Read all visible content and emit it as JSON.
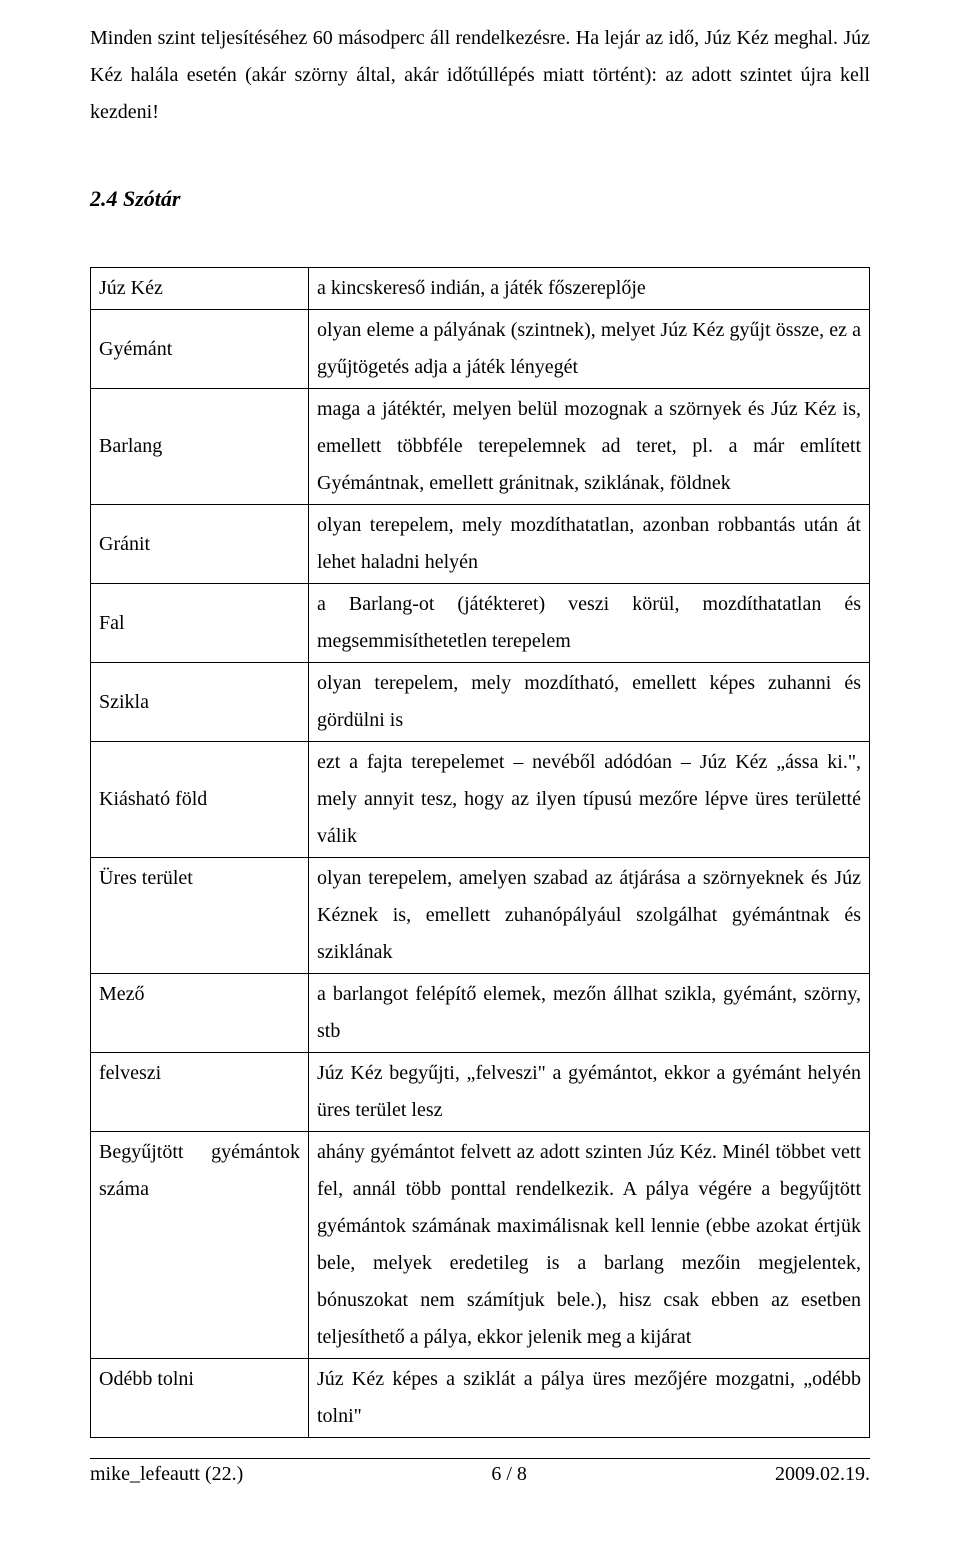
{
  "intro": "Minden szint teljesítéséhez 60 másodperc áll rendelkezésre. Ha lejár az idő, Júz Kéz meghal. Júz Kéz halála esetén (akár szörny által, akár időtúllépés miatt történt): az adott szintet újra kell kezdeni!",
  "heading": "2.4 Szótár",
  "glossary": [
    {
      "term": "Júz Kéz",
      "def": "a kincskereső indián, a játék főszereplője"
    },
    {
      "term": "Gyémánt",
      "def": "olyan eleme a pályának (szintnek), melyet Júz Kéz gyűjt össze, ez a gyűjtögetés adja a játék lényegét"
    },
    {
      "term": "Barlang",
      "def": "maga a játéktér, melyen belül mozognak a szörnyek és Júz Kéz is, emellett többféle terepelemnek ad teret, pl. a már említett Gyémántnak, emellett gránitnak, sziklának, földnek"
    },
    {
      "term": "Gránit",
      "def": "olyan terepelem, mely mozdíthatatlan, azonban robbantás után át lehet haladni helyén"
    },
    {
      "term": "Fal",
      "def": "a Barlang-ot (játékteret) veszi körül, mozdíthatatlan és megsemmisíthetetlen terepelem"
    },
    {
      "term": "Szikla",
      "def": "olyan terepelem, mely mozdítható, emellett képes zuhanni és gördülni is"
    },
    {
      "term": "Kiásható föld",
      "def": "ezt a fajta terepelemet – nevéből adódóan – Júz Kéz „ássa ki.\", mely annyit tesz, hogy az ilyen típusú mezőre lépve üres területté válik"
    },
    {
      "term": "Üres terület",
      "def": "olyan terepelem, amelyen szabad az átjárása a szörnyeknek és Júz Kéznek is, emellett zuhanópályául szolgálhat gyémántnak és sziklának"
    },
    {
      "term": "Mező",
      "def": "a barlangot felépítő elemek, mezőn állhat szikla, gyémánt, szörny, stb"
    },
    {
      "term": "felveszi",
      "def": "Júz Kéz begyűjti, „felveszi\" a gyémántot, ekkor a gyémánt helyén üres terület lesz"
    },
    {
      "term": "Begyűjtött gyémántok száma",
      "def": "ahány gyémántot felvett az adott szinten Júz Kéz. Minél többet vett fel, annál több ponttal rendelkezik. A pálya végére a begyűjtött gyémántok számának maximálisnak kell lennie (ebbe azokat értjük bele, melyek eredetileg is a barlang mezőin megjelentek, bónuszokat nem számítjuk bele.), hisz csak ebben az esetben teljesíthető a pálya, ekkor jelenik meg a kijárat"
    },
    {
      "term": "Odébb tolni",
      "def": "Júz Kéz képes a sziklát a pálya üres mezőjére mozgatni, „odébb tolni\""
    }
  ],
  "footer": {
    "left": "mike_lefeautt (22.)",
    "center": "6 / 8",
    "right": "2009.02.19."
  }
}
